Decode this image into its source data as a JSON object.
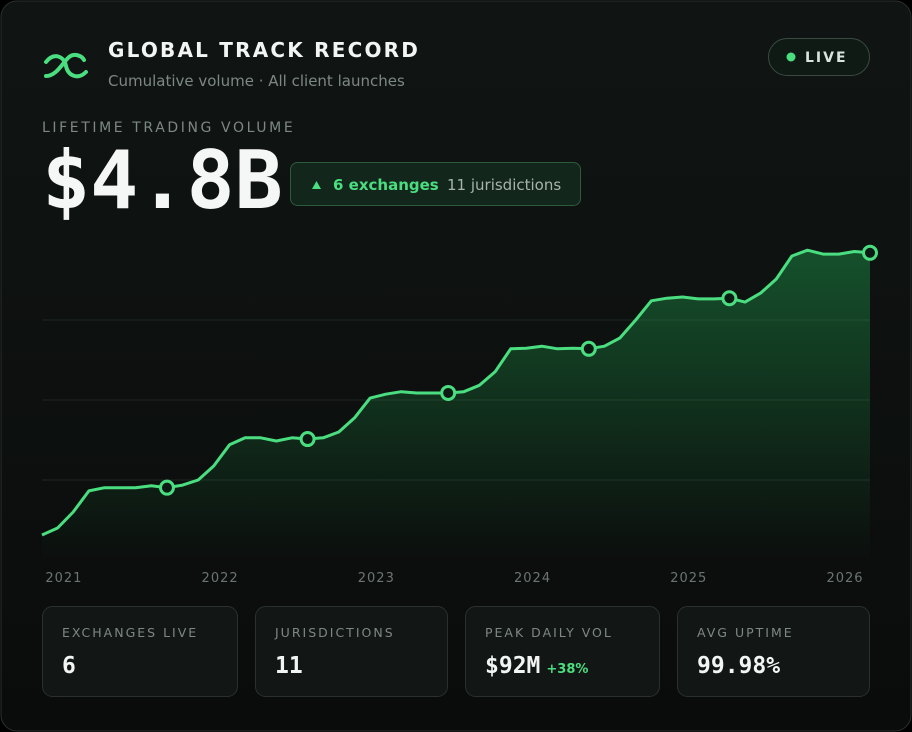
{
  "header": {
    "title": "GLOBAL TRACK RECORD",
    "subtitle": "Cumulative volume · All client launches",
    "status": "LIVE"
  },
  "metric": {
    "label": "LIFETIME TRADING VOLUME",
    "value": "$4.8B",
    "badge_primary": "6 exchanges",
    "badge_secondary": "11 jurisdictions"
  },
  "chart_data": {
    "type": "area",
    "x": [
      2020.86,
      2020.96,
      2021.06,
      2021.16,
      2021.26,
      2021.36,
      2021.46,
      2021.56,
      2021.66,
      2021.76,
      2021.86,
      2021.96,
      2022.06,
      2022.16,
      2022.26,
      2022.36,
      2022.46,
      2022.56,
      2022.66,
      2022.76,
      2022.86,
      2022.96,
      2023.06,
      2023.16,
      2023.26,
      2023.36,
      2023.46,
      2023.56,
      2023.66,
      2023.76,
      2023.86,
      2023.96,
      2024.06,
      2024.16,
      2024.26,
      2024.36,
      2024.46,
      2024.56,
      2024.66,
      2024.76,
      2024.86,
      2024.96,
      2025.06,
      2025.16,
      2025.26,
      2025.36,
      2025.46,
      2025.56,
      2025.66,
      2025.76,
      2025.86,
      2025.96,
      2026.06,
      2026.16
    ],
    "values": [
      0.39,
      0.5,
      0.75,
      1.08,
      1.13,
      1.13,
      1.13,
      1.16,
      1.13,
      1.17,
      1.25,
      1.47,
      1.8,
      1.91,
      1.91,
      1.86,
      1.91,
      1.89,
      1.91,
      2.0,
      2.22,
      2.53,
      2.59,
      2.63,
      2.61,
      2.61,
      2.61,
      2.63,
      2.73,
      2.94,
      3.3,
      3.31,
      3.34,
      3.3,
      3.31,
      3.3,
      3.34,
      3.47,
      3.75,
      4.05,
      4.09,
      4.11,
      4.08,
      4.08,
      4.09,
      4.03,
      4.17,
      4.39,
      4.75,
      4.84,
      4.78,
      4.78,
      4.82,
      4.8
    ],
    "markers": [
      8,
      17,
      26,
      35,
      44,
      53
    ],
    "color": "#4ade80",
    "xlim": [
      2020.86,
      2026.16
    ],
    "xticks": [
      2021,
      2022,
      2023,
      2024,
      2025,
      2026
    ],
    "ylim": [
      0,
      5
    ],
    "yticks": [
      1.25,
      2.5,
      3.75
    ],
    "grid": true
  },
  "stats": [
    {
      "label": "EXCHANGES LIVE",
      "value": "6"
    },
    {
      "label": "JURISDICTIONS",
      "value": "11"
    },
    {
      "label": "PEAK DAILY VOL",
      "value": "$92M",
      "delta": "+38%"
    },
    {
      "label": "AVG UPTIME",
      "value": "99.98%"
    }
  ]
}
